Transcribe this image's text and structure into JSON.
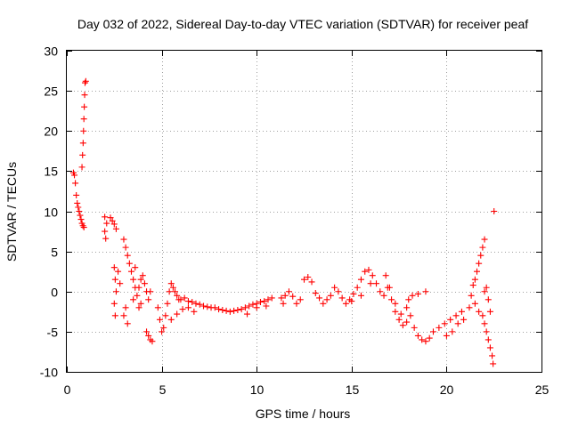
{
  "chart_data": {
    "type": "scatter",
    "title": "Day 032 of 2022, Sidereal Day-to-day VTEC variation (SDTVAR) for receiver peaf",
    "xlabel": "GPS time / hours",
    "ylabel": "SDTVAR / TECUs",
    "xlim": [
      0,
      25
    ],
    "ylim": [
      -10,
      30
    ],
    "xticks": [
      "0",
      "5",
      "10",
      "15",
      "20",
      "25"
    ],
    "yticks": [
      "-10",
      "-5",
      "0",
      "5",
      "10",
      "15",
      "20",
      "25",
      "30"
    ],
    "grid": true,
    "marker": "plus",
    "color": "#ff0000",
    "series": [
      {
        "name": "SDTVAR",
        "points": [
          [
            0.35,
            14.8
          ],
          [
            0.4,
            14.5
          ],
          [
            0.45,
            13.5
          ],
          [
            0.5,
            12.0
          ],
          [
            0.55,
            11.0
          ],
          [
            0.6,
            10.5
          ],
          [
            0.65,
            10.0
          ],
          [
            0.7,
            9.5
          ],
          [
            0.75,
            9.0
          ],
          [
            0.8,
            8.5
          ],
          [
            0.85,
            8.2
          ],
          [
            0.9,
            8.0
          ],
          [
            0.8,
            15.5
          ],
          [
            0.83,
            17.0
          ],
          [
            0.86,
            18.5
          ],
          [
            0.88,
            20.0
          ],
          [
            0.9,
            21.5
          ],
          [
            0.92,
            23.0
          ],
          [
            0.94,
            24.5
          ],
          [
            0.96,
            26.0
          ],
          [
            1.0,
            26.2
          ],
          [
            2.0,
            9.3
          ],
          [
            2.1,
            8.5
          ],
          [
            2.0,
            7.5
          ],
          [
            2.05,
            6.6
          ],
          [
            2.3,
            9.2
          ],
          [
            2.4,
            8.8
          ],
          [
            2.5,
            8.4
          ],
          [
            2.6,
            7.8
          ],
          [
            2.5,
            3.0
          ],
          [
            2.55,
            1.5
          ],
          [
            2.6,
            0.0
          ],
          [
            2.5,
            -1.5
          ],
          [
            2.55,
            -3.0
          ],
          [
            2.7,
            2.5
          ],
          [
            2.8,
            1.0
          ],
          [
            3.0,
            6.5
          ],
          [
            3.1,
            5.5
          ],
          [
            3.2,
            4.5
          ],
          [
            3.3,
            3.5
          ],
          [
            3.4,
            2.5
          ],
          [
            3.5,
            1.5
          ],
          [
            3.6,
            0.5
          ],
          [
            3.7,
            -0.5
          ],
          [
            3.8,
            0.5
          ],
          [
            3.9,
            1.5
          ],
          [
            4.0,
            2.0
          ],
          [
            4.1,
            1.0
          ],
          [
            4.2,
            0.0
          ],
          [
            4.3,
            -1.0
          ],
          [
            4.4,
            0.0
          ],
          [
            3.0,
            -3.0
          ],
          [
            3.1,
            -2.0
          ],
          [
            3.2,
            -4.0
          ],
          [
            3.5,
            -1.0
          ],
          [
            3.8,
            -2.0
          ],
          [
            4.3,
            -5.5
          ],
          [
            4.4,
            -6.0
          ],
          [
            4.5,
            -6.2
          ],
          [
            4.2,
            -5.0
          ],
          [
            3.6,
            3.0
          ],
          [
            3.9,
            -1.5
          ],
          [
            4.8,
            -2.0
          ],
          [
            4.9,
            -3.5
          ],
          [
            5.0,
            -5.0
          ],
          [
            5.1,
            -4.5
          ],
          [
            5.2,
            -3.0
          ],
          [
            5.3,
            -1.5
          ],
          [
            5.4,
            0.0
          ],
          [
            5.5,
            1.0
          ],
          [
            5.6,
            0.5
          ],
          [
            5.7,
            0.0
          ],
          [
            5.8,
            -0.5
          ],
          [
            5.9,
            -1.0
          ],
          [
            6.0,
            -1.0
          ],
          [
            6.2,
            -0.8
          ],
          [
            6.4,
            -1.2
          ],
          [
            6.6,
            -1.3
          ],
          [
            6.8,
            -1.5
          ],
          [
            7.0,
            -1.6
          ],
          [
            7.2,
            -1.8
          ],
          [
            7.4,
            -1.9
          ],
          [
            7.6,
            -2.0
          ],
          [
            7.8,
            -2.0
          ],
          [
            8.0,
            -2.2
          ],
          [
            8.2,
            -2.3
          ],
          [
            8.4,
            -2.4
          ],
          [
            8.6,
            -2.5
          ],
          [
            8.8,
            -2.4
          ],
          [
            9.0,
            -2.3
          ],
          [
            9.2,
            -2.2
          ],
          [
            9.4,
            -2.0
          ],
          [
            9.6,
            -1.8
          ],
          [
            9.8,
            -1.6
          ],
          [
            10.0,
            -1.5
          ],
          [
            10.2,
            -1.3
          ],
          [
            10.4,
            -1.2
          ],
          [
            10.6,
            -1.0
          ],
          [
            10.8,
            -0.8
          ],
          [
            5.5,
            -3.5
          ],
          [
            5.8,
            -2.8
          ],
          [
            6.1,
            -2.2
          ],
          [
            6.4,
            -2.0
          ],
          [
            6.7,
            -2.5
          ],
          [
            9.5,
            -2.8
          ],
          [
            10.0,
            -2.0
          ],
          [
            10.5,
            -1.8
          ],
          [
            11.3,
            -0.8
          ],
          [
            11.4,
            -1.5
          ],
          [
            11.5,
            -0.5
          ],
          [
            11.7,
            0.0
          ],
          [
            11.9,
            -0.6
          ],
          [
            12.1,
            -1.5
          ],
          [
            12.3,
            -1.0
          ],
          [
            12.5,
            1.5
          ],
          [
            12.7,
            1.8
          ],
          [
            12.9,
            1.2
          ],
          [
            13.1,
            -0.2
          ],
          [
            13.3,
            -0.8
          ],
          [
            13.5,
            -1.5
          ],
          [
            13.7,
            -1.0
          ],
          [
            13.9,
            -0.5
          ],
          [
            14.1,
            0.5
          ],
          [
            14.3,
            0.0
          ],
          [
            14.5,
            -0.8
          ],
          [
            14.7,
            -1.5
          ],
          [
            14.9,
            -1.0
          ],
          [
            15.1,
            -0.3
          ],
          [
            15.3,
            0.5
          ],
          [
            15.5,
            1.5
          ],
          [
            15.7,
            2.5
          ],
          [
            15.9,
            2.7
          ],
          [
            16.1,
            2.0
          ],
          [
            16.3,
            1.0
          ],
          [
            16.5,
            0.0
          ],
          [
            16.7,
            -0.5
          ],
          [
            16.9,
            0.5
          ],
          [
            17.1,
            -1.0
          ],
          [
            17.3,
            -2.5
          ],
          [
            17.5,
            -3.5
          ],
          [
            17.7,
            -4.2
          ],
          [
            17.9,
            -3.8
          ],
          [
            18.1,
            -3.0
          ],
          [
            18.3,
            -4.5
          ],
          [
            18.5,
            -5.5
          ],
          [
            18.7,
            -6.0
          ],
          [
            18.9,
            -6.2
          ],
          [
            18.0,
            -1.0
          ],
          [
            18.2,
            -0.5
          ],
          [
            18.5,
            -0.3
          ],
          [
            18.9,
            0.0
          ],
          [
            15.0,
            -1.2
          ],
          [
            15.5,
            -0.5
          ],
          [
            16.0,
            1.0
          ],
          [
            16.8,
            2.0
          ],
          [
            17.0,
            0.5
          ],
          [
            17.3,
            -1.5
          ],
          [
            17.6,
            -2.8
          ],
          [
            17.9,
            -2.0
          ],
          [
            19.3,
            -5.0
          ],
          [
            19.6,
            -4.5
          ],
          [
            19.9,
            -4.0
          ],
          [
            20.2,
            -3.5
          ],
          [
            20.5,
            -3.0
          ],
          [
            20.8,
            -2.5
          ],
          [
            20.0,
            -5.5
          ],
          [
            20.3,
            -5.0
          ],
          [
            20.6,
            -4.0
          ],
          [
            20.9,
            -3.5
          ],
          [
            19.1,
            -5.8
          ],
          [
            21.2,
            -2.0
          ],
          [
            21.3,
            -0.5
          ],
          [
            21.4,
            0.8
          ],
          [
            21.5,
            1.5
          ],
          [
            21.6,
            2.5
          ],
          [
            21.7,
            3.5
          ],
          [
            21.8,
            4.5
          ],
          [
            21.9,
            5.5
          ],
          [
            22.0,
            6.5
          ],
          [
            21.5,
            -1.5
          ],
          [
            21.7,
            -2.5
          ],
          [
            21.9,
            -3.0
          ],
          [
            22.0,
            0.0
          ],
          [
            22.1,
            0.5
          ],
          [
            22.2,
            -1.0
          ],
          [
            22.3,
            -2.5
          ],
          [
            22.0,
            -4.0
          ],
          [
            22.1,
            -5.0
          ],
          [
            22.2,
            -6.0
          ],
          [
            22.3,
            -7.0
          ],
          [
            22.4,
            -8.0
          ],
          [
            22.45,
            -9.0
          ],
          [
            22.5,
            10.0
          ]
        ]
      }
    ]
  }
}
